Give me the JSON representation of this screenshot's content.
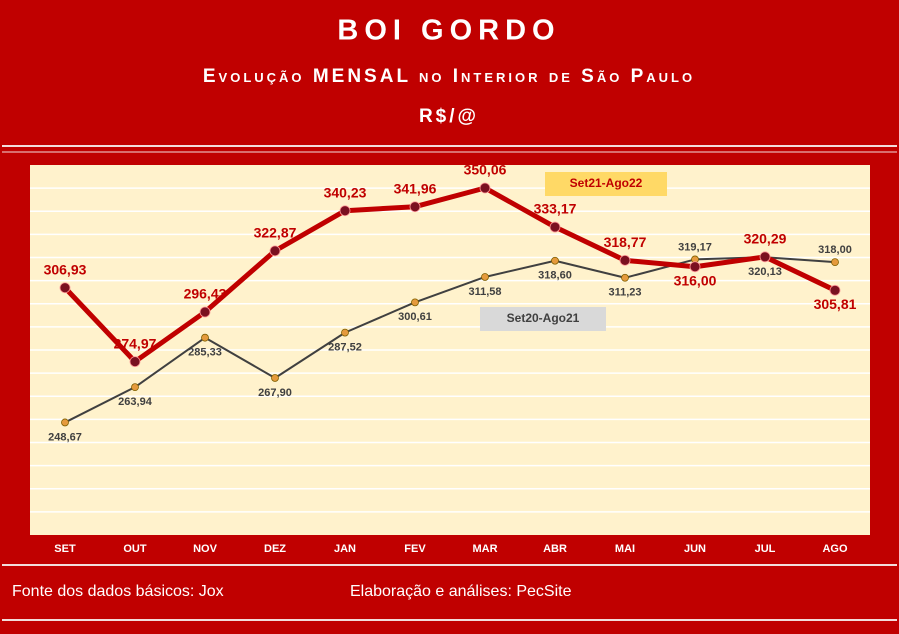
{
  "chart_data": {
    "type": "line",
    "title": "BOI GORDO",
    "subtitle": "Evolução MENSAL no Interior de São Paulo",
    "unit": "R$/@",
    "categories": [
      "SET",
      "OUT",
      "NOV",
      "DEZ",
      "JAN",
      "FEV",
      "MAR",
      "ABR",
      "MAI",
      "JUN",
      "JUL",
      "AGO"
    ],
    "series": [
      {
        "name": "Set21-Ago22",
        "color": "#c00000",
        "values": [
          306.93,
          274.97,
          296.43,
          322.87,
          340.23,
          341.96,
          350.06,
          333.17,
          318.77,
          316.0,
          320.29,
          305.81
        ],
        "value_labels": [
          "306,93",
          "274,97",
          "296,43",
          "322,87",
          "340,23",
          "341,96",
          "350,06",
          "333,17",
          "318,77",
          "316,00",
          "320,29",
          "305,81"
        ]
      },
      {
        "name": "Set20-Ago21",
        "color": "#404040",
        "values": [
          248.67,
          263.94,
          285.33,
          267.9,
          287.52,
          300.61,
          311.58,
          318.6,
          311.23,
          319.17,
          320.13,
          318.0
        ],
        "value_labels": [
          "248,67",
          "263,94",
          "285,33",
          "267,90",
          "287,52",
          "300,61",
          "311,58",
          "318,60",
          "311,23",
          "319,17",
          "320,13",
          "318,00"
        ]
      }
    ],
    "ylim": [
      200,
      360
    ],
    "grid": true,
    "footer_left": "Fonte dos dados básicos: Jox",
    "footer_right": "Elaboração e análises: PecSite"
  }
}
